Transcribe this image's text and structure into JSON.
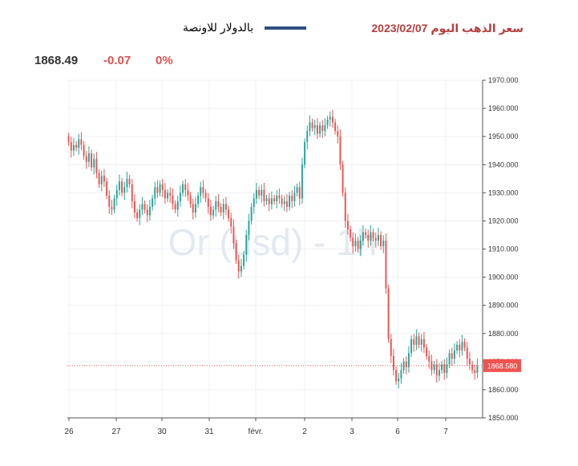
{
  "header": {
    "title": "سعر الذهب اليوم 2023/02/07",
    "legend_label": "بالدولار للاونصة",
    "legend_color": "#2c4f7f"
  },
  "stats": {
    "price": "1868.49",
    "change": "-0.07",
    "percent": "0%"
  },
  "chart_data": {
    "type": "candlestick",
    "watermark": "Or (usd) - 1h",
    "ylim": [
      1850,
      1970
    ],
    "y_ticks": [
      "1850.000",
      "1860.000",
      "1870.000",
      "1880.000",
      "1890.000",
      "1900.000",
      "1910.000",
      "1920.000",
      "1930.000",
      "1940.000",
      "1950.000",
      "1960.000",
      "1970.000"
    ],
    "x_ticks": [
      "26",
      "27",
      "30",
      "31",
      "févr.",
      "2",
      "3",
      "6",
      "7"
    ],
    "last_price_label": "1868.580",
    "last_price": 1868.58,
    "up_color": "#26a69a",
    "down_color": "#ef5350",
    "closes": [
      1948,
      1945,
      1947,
      1946,
      1949,
      1947,
      1943,
      1941,
      1944,
      1939,
      1942,
      1937,
      1933,
      1936,
      1934,
      1929,
      1925,
      1924,
      1928,
      1931,
      1934,
      1930,
      1932,
      1935,
      1933,
      1927,
      1923,
      1921,
      1924,
      1926,
      1924,
      1922,
      1925,
      1928,
      1932,
      1930,
      1933,
      1931,
      1928,
      1930,
      1929,
      1926,
      1924,
      1927,
      1930,
      1933,
      1931,
      1929,
      1926,
      1923,
      1926,
      1929,
      1932,
      1930,
      1928,
      1925,
      1922,
      1924,
      1927,
      1925,
      1923,
      1926,
      1924,
      1921,
      1918,
      1912,
      1906,
      1902,
      1904,
      1908,
      1915,
      1920,
      1925,
      1928,
      1931,
      1929,
      1931,
      1927,
      1928,
      1926,
      1928,
      1927,
      1929,
      1928,
      1926,
      1927,
      1925,
      1929,
      1927,
      1930,
      1932,
      1928,
      1940,
      1948,
      1952,
      1955,
      1953,
      1954,
      1951,
      1954,
      1952,
      1954,
      1956,
      1957,
      1955,
      1952,
      1950,
      1940,
      1930,
      1920,
      1917,
      1914,
      1911,
      1913,
      1910,
      1913,
      1916,
      1915,
      1913,
      1916,
      1914,
      1913,
      1915,
      1911,
      1913,
      1896,
      1878,
      1872,
      1867,
      1863,
      1864,
      1867,
      1870,
      1868,
      1873,
      1878,
      1876,
      1879,
      1876,
      1878,
      1875,
      1872,
      1870,
      1867,
      1869,
      1865,
      1867,
      1869,
      1866,
      1869,
      1873,
      1871,
      1874,
      1876,
      1874,
      1877,
      1875,
      1871,
      1869,
      1867,
      1866,
      1868.58
    ]
  }
}
